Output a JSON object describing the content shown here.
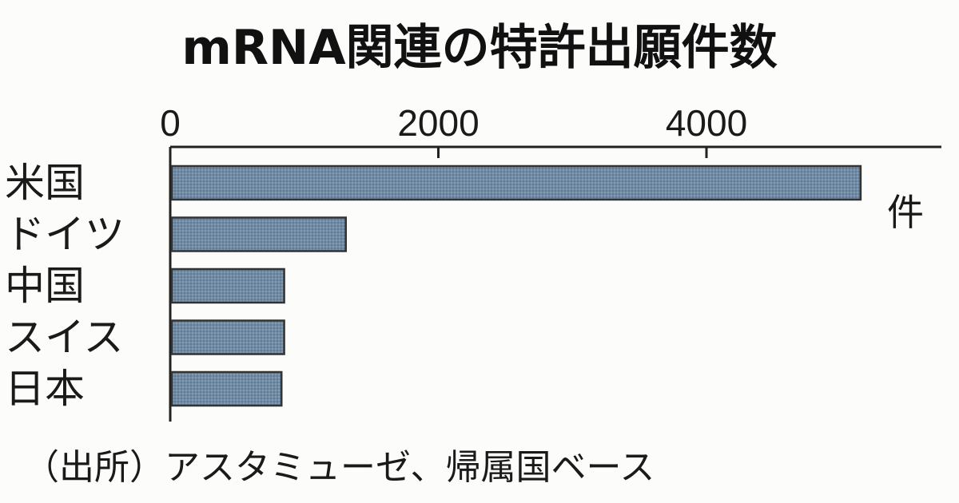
{
  "chart_data": {
    "type": "bar",
    "orientation": "horizontal",
    "title": "mRNA関連の特許出願件数",
    "unit": "件",
    "categories": [
      "米国",
      "ドイツ",
      "中国",
      "スイス",
      "日本"
    ],
    "values": [
      5150,
      1310,
      850,
      850,
      830
    ],
    "xlim": [
      0,
      5800
    ],
    "ticks": [
      0,
      2000,
      4000
    ],
    "tick_labels": [
      "0",
      "2000",
      "4000"
    ],
    "bar_color": "#6f8aa3",
    "grid": false,
    "source": "（出所）アスタミューゼ、帰属国ベース"
  }
}
